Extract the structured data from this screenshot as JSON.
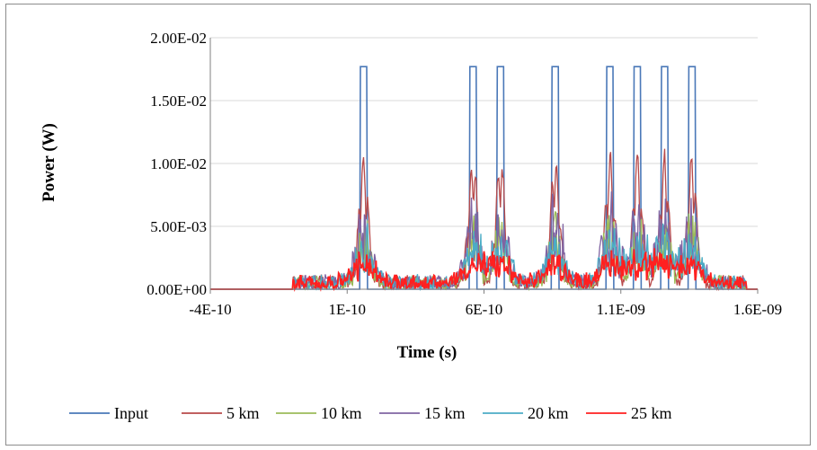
{
  "chart_data": {
    "type": "line",
    "title": "",
    "xlabel": "Time (s)",
    "ylabel": "Power (W)",
    "xlim": [
      -4e-10,
      1.6e-09
    ],
    "ylim": [
      0,
      0.02
    ],
    "x_tick_labels": [
      "-4E-10",
      "1E-10",
      "6E-10",
      "1.1E-09",
      "1.6E-09"
    ],
    "y_tick_labels": [
      "0.00E+00",
      "5.00E-03",
      "1.00E-02",
      "1.50E-02",
      "2.00E-02"
    ],
    "grid": "horizontal",
    "legend_position": "bottom",
    "pulse_centers": [
      1.6e-10,
      5.6e-10,
      6.6e-10,
      8.6e-10,
      1.06e-09,
      1.16e-09,
      1.26e-09,
      1.36e-09
    ],
    "series": [
      {
        "name": "Input",
        "color": "#4a78b8",
        "peak": 0.0177
      },
      {
        "name": "5 km",
        "color": "#b84a4a",
        "peak": 0.0102
      },
      {
        "name": "10 km",
        "color": "#9bbb59",
        "peak": 0.0065
      },
      {
        "name": "15 km",
        "color": "#8064a2",
        "peak": 0.0075
      },
      {
        "name": "20 km",
        "color": "#4bacc6",
        "peak": 0.005
      },
      {
        "name": "25 km",
        "color": "#ff2020",
        "peak": 0.0028
      }
    ]
  }
}
